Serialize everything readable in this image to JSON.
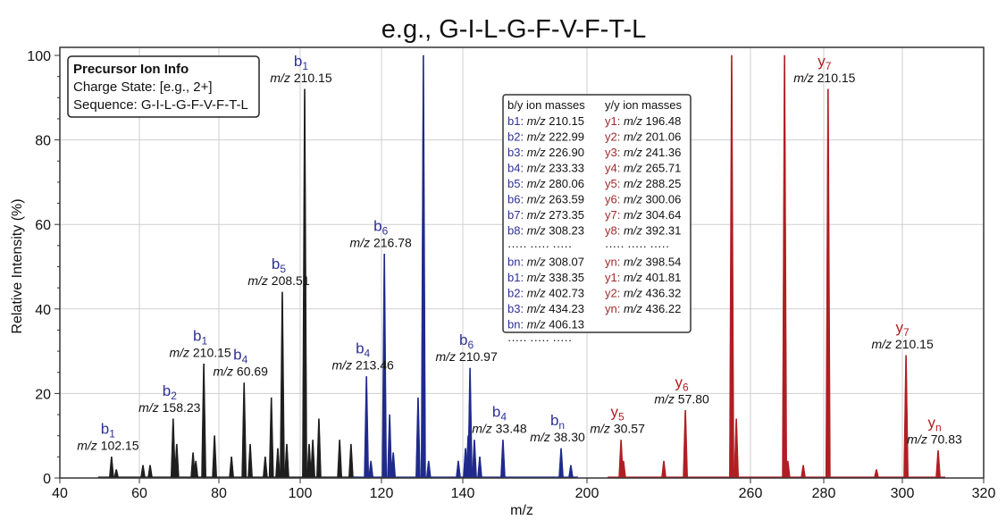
{
  "chart_data": {
    "type": "bar",
    "title": "e.g., G-I-L-G-F-V-F-T-L",
    "xlabel": "m/z",
    "ylabel": "Relative Intensity (%)",
    "x_ticks": [
      40,
      60,
      80,
      100,
      120,
      140,
      200,
      260,
      280,
      300,
      320
    ],
    "y_ticks": [
      0,
      20,
      40,
      60,
      80,
      100
    ],
    "ylim": [
      0,
      100
    ],
    "grid": true,
    "series": [
      {
        "color": "#1e1e1e",
        "x": [
          53.0,
          54.2,
          60.9,
          62.7,
          68.5,
          69.4,
          73.5,
          74.2,
          76.2,
          78.9,
          83.1,
          86.2,
          87.7,
          91.4,
          92.9,
          94.5,
          95.6,
          96.7,
          101.1,
          102.2,
          103.1,
          104.6,
          109.7,
          112.5
        ],
        "y": [
          5,
          2,
          3,
          3,
          14,
          8,
          6,
          4,
          27,
          10,
          5,
          22.5,
          8,
          5,
          19,
          7,
          44,
          8,
          92,
          8,
          9,
          14,
          9,
          8
        ]
      },
      {
        "color": "#1f2a8c",
        "x": [
          116.3,
          117.4,
          120.7,
          122.0,
          122.9,
          129.0,
          130.3,
          131.6,
          138.9,
          141.3,
          142.6,
          143.5,
          145.6,
          148.2,
          159.4,
          187.5,
          192.2
        ],
        "y": [
          24,
          4,
          53,
          15,
          6,
          19,
          100,
          4,
          4,
          7,
          10,
          26,
          9,
          5,
          9,
          7,
          3
        ]
      },
      {
        "color": "#b01e23",
        "x": [
          212.5,
          213.4,
          228.2,
          236.1,
          253.1,
          254.8,
          269.3,
          270.2,
          274.4,
          281.1,
          293.4,
          300.9,
          308.8
        ],
        "y": [
          9,
          4,
          4,
          16,
          100,
          14,
          100,
          4,
          3,
          92,
          2,
          29,
          6.5
        ]
      }
    ],
    "annotations": [
      {
        "ion": "b",
        "sub": "1",
        "mz": "102.15",
        "x": 53.0,
        "y": 5,
        "color": "#2e3192"
      },
      {
        "ion": "b",
        "sub": "2",
        "mz": "158.23",
        "x": 68.5,
        "y": 14,
        "color": "#2e3192"
      },
      {
        "ion": "b",
        "sub": "1",
        "mz": "210.15",
        "x": 76.2,
        "y": 27,
        "color": "#2e3192"
      },
      {
        "ion": "b",
        "sub": "4",
        "mz": "60.69",
        "x": 86.2,
        "y": 22.5,
        "color": "#2e3192"
      },
      {
        "ion": "b",
        "sub": "5",
        "mz": "208.51",
        "x": 95.6,
        "y": 44,
        "color": "#2e3192"
      },
      {
        "ion": "b",
        "sub": "1",
        "mz": "210.15",
        "x": 101.1,
        "y": 92,
        "color": "#2e3192"
      },
      {
        "ion": "b",
        "sub": "4",
        "mz": "213.46",
        "x": 116.3,
        "y": 24,
        "color": "#2e3192"
      },
      {
        "ion": "b",
        "sub": "6",
        "mz": "216.78",
        "x": 120.7,
        "y": 53,
        "color": "#2e3192"
      },
      {
        "ion": "b",
        "sub": "6",
        "mz": "210.97",
        "x": 143.5,
        "y": 26,
        "color": "#2e3192"
      },
      {
        "ion": "b",
        "sub": "4",
        "mz": "33.48",
        "x": 159.4,
        "y": 9,
        "color": "#2e3192"
      },
      {
        "ion": "b",
        "sub": "n",
        "mz": "38.30",
        "x": 187.5,
        "y": 7,
        "color": "#2e3192"
      },
      {
        "ion": "y",
        "sub": "5",
        "mz": "30.57",
        "x": 212.5,
        "y": 9,
        "color": "#b01e23"
      },
      {
        "ion": "y",
        "sub": "6",
        "mz": "57.80",
        "x": 236.1,
        "y": 16,
        "color": "#b01e23"
      },
      {
        "ion": "y",
        "sub": "7",
        "mz": "210.15",
        "x": 281.1,
        "y": 92,
        "color": "#b01e23"
      },
      {
        "ion": "y",
        "sub": "7",
        "mz": "210.15",
        "x": 300.9,
        "y": 29,
        "color": "#b01e23"
      },
      {
        "ion": "y",
        "sub": "n",
        "mz": "70.83",
        "x": 308.8,
        "y": 6.5,
        "color": "#b01e23"
      }
    ],
    "mz_prefix": "m/z",
    "precursor_box": {
      "heading": "Precursor Ion Info",
      "charge": "Charge State: [e.g., 2+]",
      "sequence": "Sequence: G-I-L-G-F-V-F-T-L"
    },
    "ion_table": {
      "b_header": "b/y ion masses",
      "y_header": "y/y ion masses",
      "dots": "·····  ·····  ·····",
      "b_rows": [
        [
          "b1:",
          "210.15"
        ],
        [
          "b2:",
          "222.99"
        ],
        [
          "b3:",
          "226.90"
        ],
        [
          "b4:",
          "233.33"
        ],
        [
          "b5:",
          "280.06"
        ],
        [
          "b6:",
          "263.59"
        ],
        [
          "b7:",
          "273.35"
        ],
        [
          "b8:",
          "308.23"
        ],
        null,
        [
          "bn:",
          "308.07"
        ],
        [
          "b1:",
          "338.35"
        ],
        [
          "b2:",
          "402.73"
        ],
        [
          "b3:",
          "434.23"
        ],
        [
          "bn:",
          "406.13"
        ],
        null
      ],
      "y_rows": [
        [
          "y1:",
          "196.48"
        ],
        [
          "y2:",
          "201.06"
        ],
        [
          "y3:",
          "241.36"
        ],
        [
          "y4:",
          "265.71"
        ],
        [
          "y5:",
          "288.25"
        ],
        [
          "y6:",
          "300.06"
        ],
        [
          "y7:",
          "304.64"
        ],
        [
          "y8:",
          "392.31"
        ],
        null,
        [
          "yn:",
          "398.54"
        ],
        [
          "y1:",
          "401.81"
        ],
        [
          "y2:",
          "436.32"
        ],
        [
          "yn:",
          "436.22"
        ]
      ],
      "b_color": "#2e3192",
      "y_color": "#a3282a"
    }
  }
}
